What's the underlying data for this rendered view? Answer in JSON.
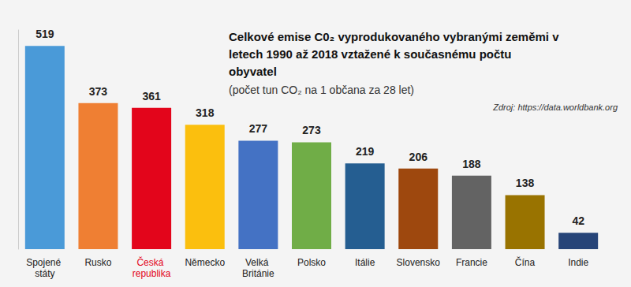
{
  "chart_data": {
    "type": "bar",
    "title": "Celkové emise C0₂ vyprodukovaného vybranými zeměmi v letech 1990 až 2018 vztažené k současnému počtu obyvatel",
    "subtitle": "(počet tun CO₂ na 1 občana za 28 let)",
    "source": "Zdroj: https://data.worldbank.org",
    "categories": [
      "Spojené státy",
      "Rusko",
      "Česká republika",
      "Německo",
      "Velká Británie",
      "Polsko",
      "Itálie",
      "Slovensko",
      "Francie",
      "Čína",
      "Indie"
    ],
    "values": [
      519,
      373,
      361,
      318,
      277,
      273,
      219,
      206,
      188,
      138,
      42
    ],
    "colors": [
      "#4a9ad8",
      "#ef7f33",
      "#e3051b",
      "#fbbf0e",
      "#4472c4",
      "#70ad47",
      "#255e91",
      "#9e480e",
      "#636363",
      "#997300",
      "#264478"
    ],
    "ylim": [
      0,
      560
    ],
    "grid": false,
    "data_labels": true,
    "tick_labels": "x"
  }
}
